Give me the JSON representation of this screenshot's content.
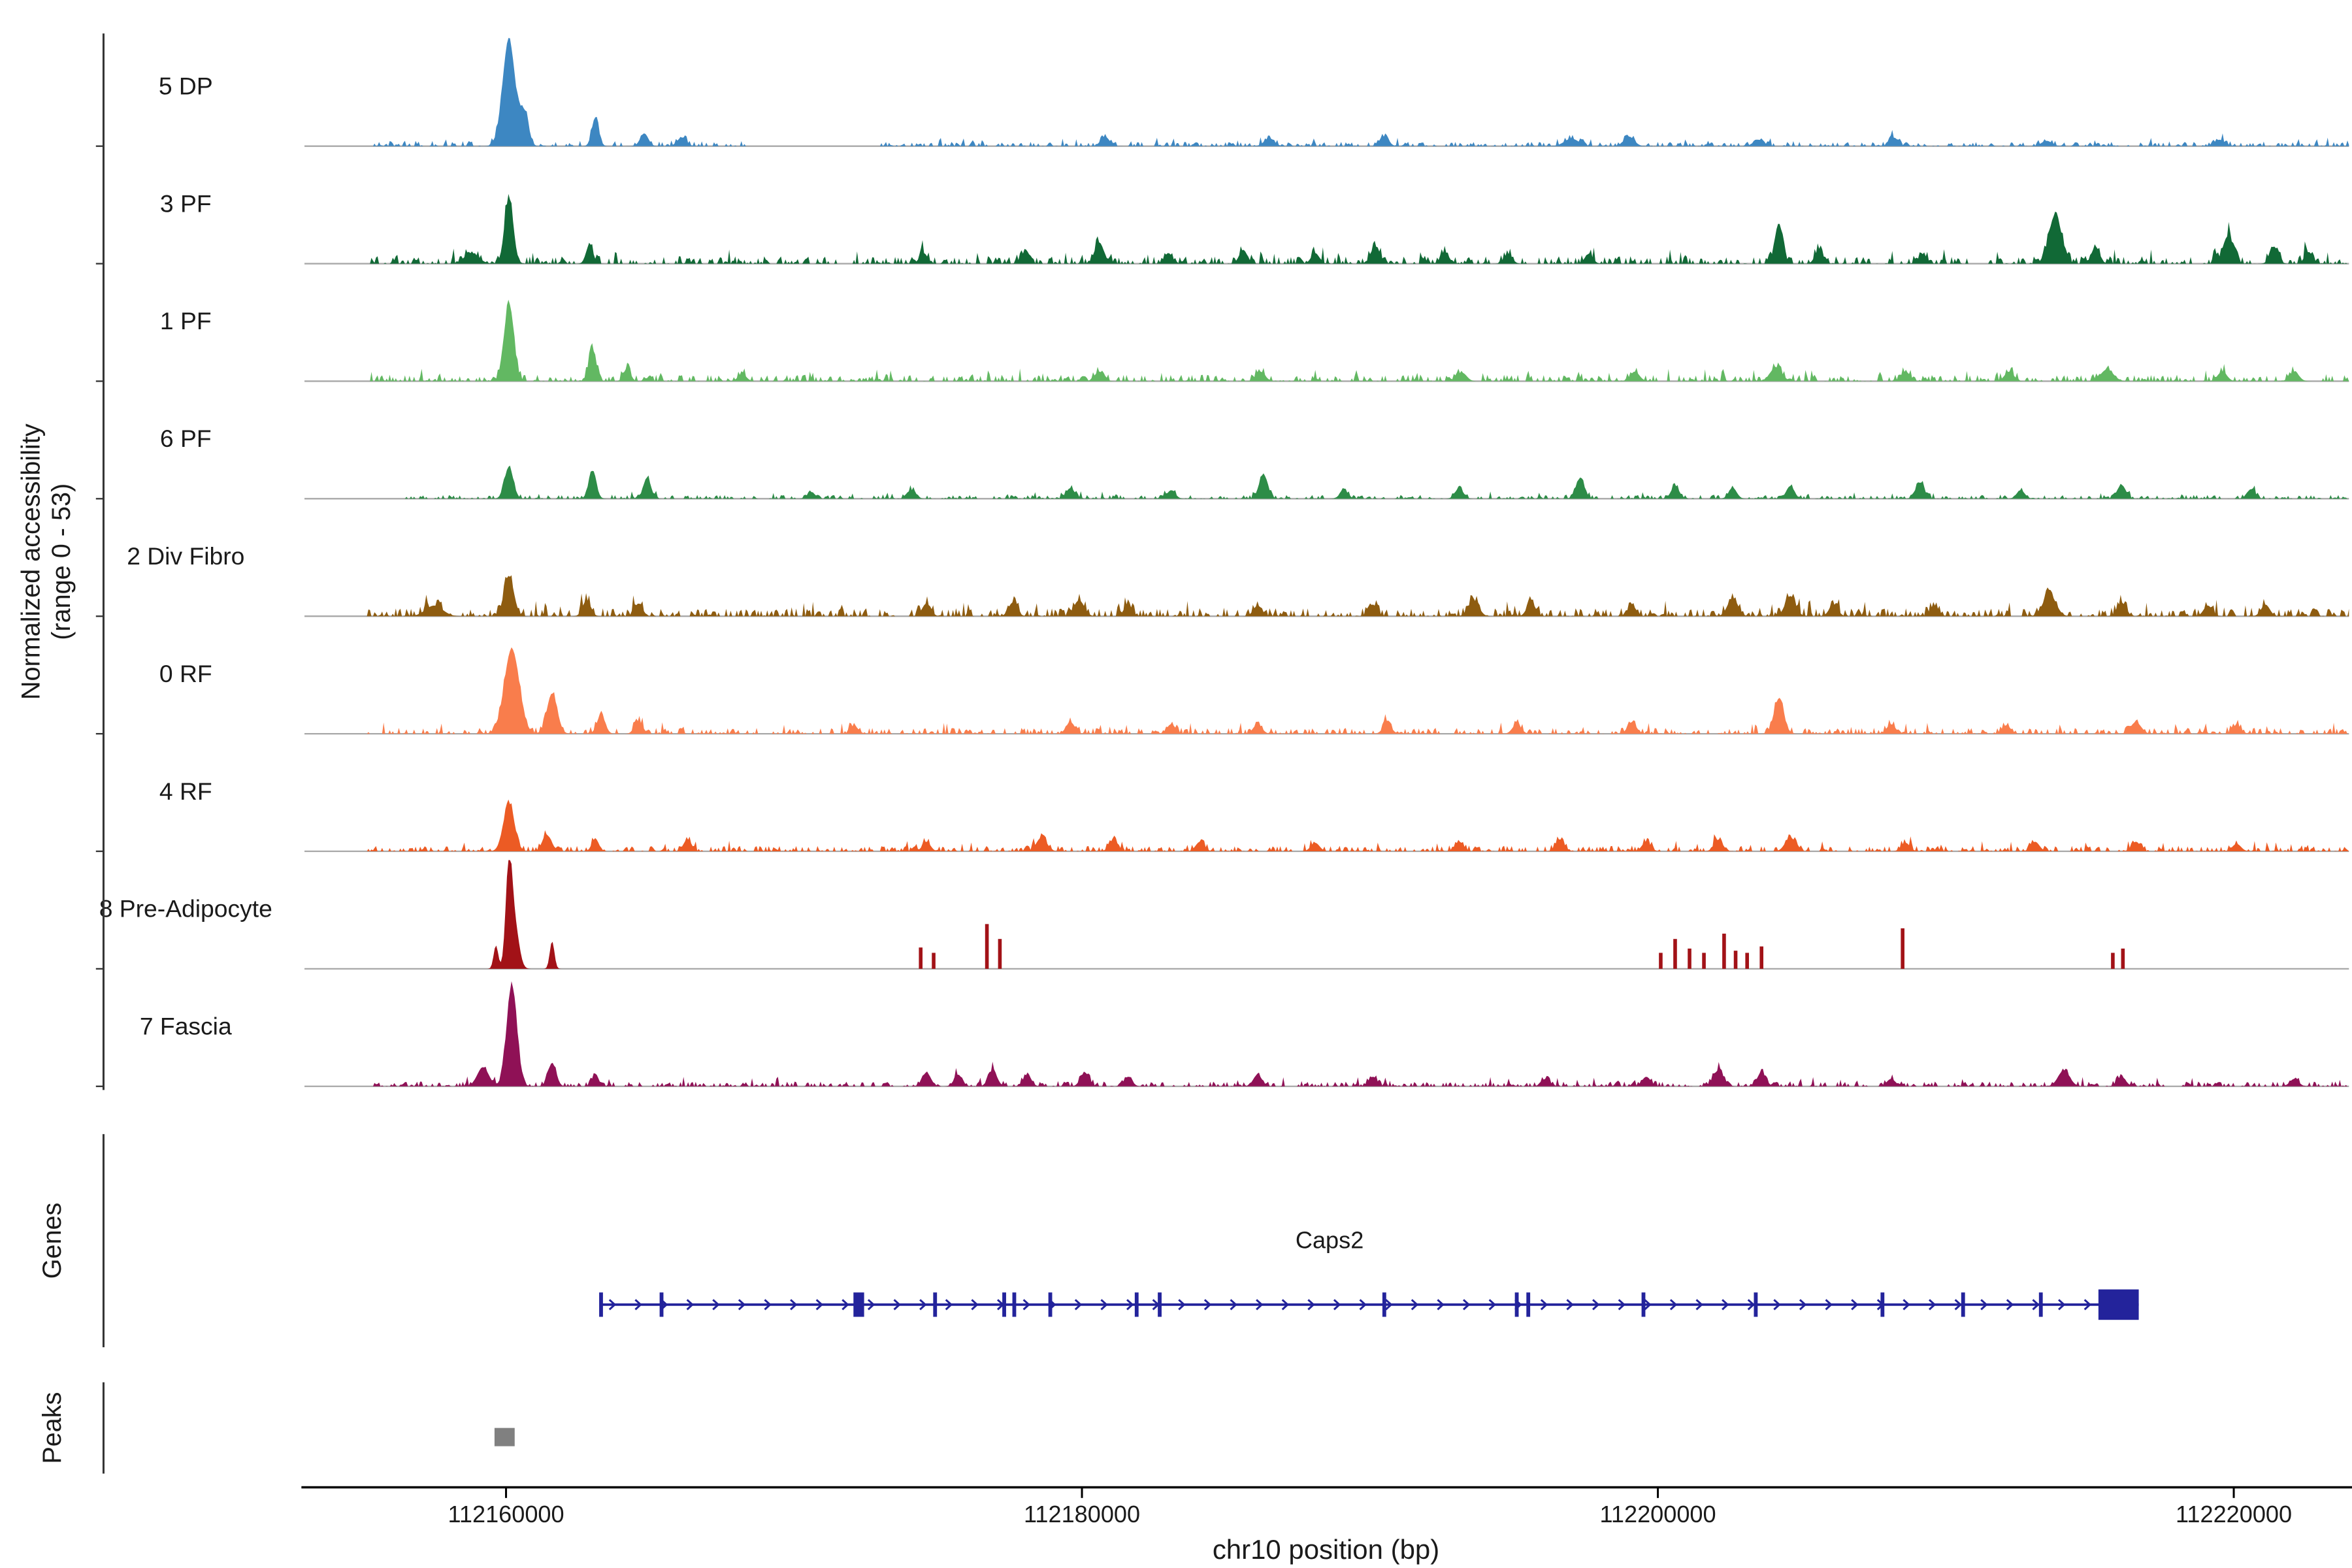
{
  "figure": {
    "y_axis_label_line1": "Normalized accessibility",
    "y_axis_label_line2": "(range 0 - 53)",
    "genes_section_label": "Genes",
    "peaks_section_label": "Peaks",
    "x_axis_label": "chr10 position (bp)"
  },
  "chart_data": {
    "type": "area",
    "subtype": "genome-coverage-tracks",
    "title": "",
    "x_label": "chr10 position (bp)",
    "y_range_label": "range 0 - 53",
    "x_min": 112153000,
    "x_max": 112224000,
    "x_ticks": [
      112160000,
      112180000,
      112200000,
      112220000
    ],
    "grid": false,
    "tracks": [
      {
        "name": "5 DP",
        "color": "#3d87c2",
        "seed": 11,
        "bumps": [
          [
            112160100,
            1.0,
            220
          ],
          [
            112160650,
            0.3,
            140
          ],
          [
            112163100,
            0.27,
            120
          ],
          [
            112164800,
            0.12,
            140
          ],
          [
            112166100,
            0.08,
            160
          ],
          [
            112180800,
            0.09,
            150
          ],
          [
            112186500,
            0.07,
            180
          ],
          [
            112190500,
            0.09,
            150
          ],
          [
            112197000,
            0.07,
            250
          ],
          [
            112199000,
            0.09,
            180
          ],
          [
            112203500,
            0.06,
            180
          ],
          [
            112208200,
            0.08,
            150
          ],
          [
            112213500,
            0.05,
            180
          ],
          [
            112219500,
            0.06,
            180
          ]
        ],
        "spikes": [],
        "noise": [
          [
            112155200,
            112168500,
            0.05
          ],
          [
            112173000,
            112224000,
            0.04
          ]
        ]
      },
      {
        "name": "3 PF",
        "color": "#116936",
        "seed": 22,
        "bumps": [
          [
            112160100,
            0.62,
            150
          ],
          [
            112162900,
            0.18,
            120
          ],
          [
            112158800,
            0.1,
            250
          ],
          [
            112174500,
            0.1,
            140
          ],
          [
            112178000,
            0.1,
            140
          ],
          [
            112180600,
            0.2,
            160
          ],
          [
            112183000,
            0.1,
            140
          ],
          [
            112185600,
            0.13,
            140
          ],
          [
            112188100,
            0.1,
            140
          ],
          [
            112190200,
            0.16,
            150
          ],
          [
            112192600,
            0.11,
            140
          ],
          [
            112194800,
            0.09,
            140
          ],
          [
            112197600,
            0.09,
            140
          ],
          [
            112204200,
            0.38,
            140
          ],
          [
            112205600,
            0.13,
            140
          ],
          [
            112209200,
            0.09,
            140
          ],
          [
            112213800,
            0.46,
            220
          ],
          [
            112215200,
            0.16,
            140
          ],
          [
            112219800,
            0.26,
            180
          ],
          [
            112221400,
            0.16,
            140
          ],
          [
            112222600,
            0.11,
            140
          ]
        ],
        "spikes": [],
        "noise": [
          [
            112155200,
            112224000,
            0.07
          ]
        ]
      },
      {
        "name": "1 PF",
        "color": "#62b862",
        "seed": 33,
        "bumps": [
          [
            112160100,
            0.72,
            170
          ],
          [
            112163000,
            0.3,
            130
          ],
          [
            112164200,
            0.12,
            120
          ],
          [
            112168200,
            0.07,
            140
          ],
          [
            112180600,
            0.09,
            160
          ],
          [
            112186200,
            0.09,
            160
          ],
          [
            112193200,
            0.08,
            160
          ],
          [
            112199200,
            0.09,
            160
          ],
          [
            112204100,
            0.13,
            200
          ],
          [
            112208600,
            0.09,
            160
          ],
          [
            112212200,
            0.09,
            160
          ],
          [
            112215600,
            0.11,
            220
          ],
          [
            112219600,
            0.09,
            160
          ],
          [
            112222100,
            0.09,
            160
          ]
        ],
        "spikes": [],
        "noise": [
          [
            112155200,
            112224000,
            0.06
          ]
        ]
      },
      {
        "name": "6 PF",
        "color": "#2d8c47",
        "seed": 44,
        "bumps": [
          [
            112160100,
            0.3,
            150
          ],
          [
            112163000,
            0.26,
            130
          ],
          [
            112164900,
            0.2,
            130
          ],
          [
            112170600,
            0.06,
            140
          ],
          [
            112174100,
            0.08,
            140
          ],
          [
            112179600,
            0.1,
            150
          ],
          [
            112183100,
            0.08,
            140
          ],
          [
            112186300,
            0.23,
            150
          ],
          [
            112189100,
            0.08,
            140
          ],
          [
            112193100,
            0.1,
            140
          ],
          [
            112197300,
            0.19,
            150
          ],
          [
            112200600,
            0.12,
            140
          ],
          [
            112202600,
            0.1,
            140
          ],
          [
            112204600,
            0.12,
            140
          ],
          [
            112209100,
            0.15,
            150
          ],
          [
            112212600,
            0.08,
            140
          ],
          [
            112216100,
            0.13,
            150
          ],
          [
            112220600,
            0.09,
            140
          ]
        ],
        "spikes": [],
        "noise": [
          [
            112156500,
            112224000,
            0.035
          ]
        ]
      },
      {
        "name": "2 Div Fibro",
        "color": "#8e5c10",
        "seed": 55,
        "bumps": [
          [
            112160100,
            0.38,
            170
          ],
          [
            112162800,
            0.15,
            140
          ],
          [
            112164600,
            0.12,
            140
          ],
          [
            112157500,
            0.1,
            300
          ],
          [
            112174600,
            0.12,
            150
          ],
          [
            112177600,
            0.13,
            150
          ],
          [
            112179900,
            0.15,
            180
          ],
          [
            112181600,
            0.11,
            140
          ],
          [
            112186100,
            0.1,
            150
          ],
          [
            112190100,
            0.11,
            150
          ],
          [
            112193600,
            0.15,
            180
          ],
          [
            112195600,
            0.13,
            150
          ],
          [
            112199100,
            0.1,
            150
          ],
          [
            112202600,
            0.17,
            180
          ],
          [
            112204600,
            0.19,
            180
          ],
          [
            112206100,
            0.11,
            150
          ],
          [
            112209600,
            0.1,
            150
          ],
          [
            112213600,
            0.21,
            220
          ],
          [
            112216100,
            0.13,
            150
          ],
          [
            112219100,
            0.1,
            150
          ],
          [
            112221100,
            0.11,
            150
          ]
        ],
        "spikes": [],
        "noise": [
          [
            112155200,
            112224000,
            0.075
          ]
        ]
      },
      {
        "name": "0 RF",
        "color": "#f97d4c",
        "seed": 66,
        "bumps": [
          [
            112160200,
            0.8,
            260
          ],
          [
            112161600,
            0.38,
            180
          ],
          [
            112163300,
            0.18,
            140
          ],
          [
            112164600,
            0.12,
            140
          ],
          [
            112172100,
            0.07,
            140
          ],
          [
            112179600,
            0.11,
            150
          ],
          [
            112183100,
            0.09,
            150
          ],
          [
            112186100,
            0.09,
            150
          ],
          [
            112190600,
            0.09,
            150
          ],
          [
            112195100,
            0.09,
            150
          ],
          [
            112199100,
            0.11,
            150
          ],
          [
            112204200,
            0.33,
            170
          ],
          [
            112208100,
            0.09,
            150
          ],
          [
            112212100,
            0.08,
            150
          ],
          [
            112216600,
            0.11,
            180
          ],
          [
            112220100,
            0.08,
            150
          ]
        ],
        "spikes": [],
        "noise": [
          [
            112155200,
            112224000,
            0.055
          ]
        ]
      },
      {
        "name": "4 RF",
        "color": "#ec5b24",
        "seed": 77,
        "bumps": [
          [
            112160100,
            0.45,
            190
          ],
          [
            112161400,
            0.16,
            140
          ],
          [
            112163100,
            0.12,
            120
          ],
          [
            112166300,
            0.11,
            140
          ],
          [
            112174600,
            0.09,
            140
          ],
          [
            112178600,
            0.13,
            180
          ],
          [
            112181100,
            0.11,
            150
          ],
          [
            112184100,
            0.09,
            150
          ],
          [
            112188100,
            0.08,
            150
          ],
          [
            112193100,
            0.09,
            150
          ],
          [
            112196600,
            0.11,
            150
          ],
          [
            112199600,
            0.09,
            150
          ],
          [
            112202100,
            0.11,
            150
          ],
          [
            112204600,
            0.13,
            180
          ],
          [
            112208600,
            0.08,
            150
          ],
          [
            112213100,
            0.09,
            150
          ],
          [
            112216600,
            0.09,
            150
          ],
          [
            112220100,
            0.07,
            150
          ]
        ],
        "spikes": [],
        "noise": [
          [
            112155200,
            112224000,
            0.05
          ]
        ]
      },
      {
        "name": "8 Pre-Adipocyte",
        "color": "#a21217",
        "seed": 88,
        "bumps": [
          [
            112160100,
            0.95,
            110
          ],
          [
            112160300,
            0.4,
            150
          ],
          [
            112159650,
            0.22,
            80
          ],
          [
            112161600,
            0.26,
            80
          ]
        ],
        "spikes": [
          [
            112174400,
            0.2
          ],
          [
            112174850,
            0.15
          ],
          [
            112176700,
            0.42
          ],
          [
            112177150,
            0.28
          ],
          [
            112200100,
            0.15
          ],
          [
            112200600,
            0.28
          ],
          [
            112201100,
            0.19
          ],
          [
            112201600,
            0.15
          ],
          [
            112202300,
            0.33
          ],
          [
            112202700,
            0.17
          ],
          [
            112203100,
            0.15
          ],
          [
            112203600,
            0.21
          ],
          [
            112208500,
            0.38
          ],
          [
            112215800,
            0.15
          ],
          [
            112216150,
            0.19
          ]
        ],
        "noise": []
      },
      {
        "name": "7 Fascia",
        "color": "#8f1156",
        "seed": 99,
        "bumps": [
          [
            112160200,
            0.95,
            180
          ],
          [
            112159200,
            0.18,
            200
          ],
          [
            112161600,
            0.22,
            140
          ],
          [
            112163100,
            0.12,
            110
          ],
          [
            112174600,
            0.13,
            150
          ],
          [
            112175700,
            0.11,
            140
          ],
          [
            112176900,
            0.15,
            150
          ],
          [
            112178100,
            0.11,
            140
          ],
          [
            112180100,
            0.13,
            150
          ],
          [
            112181600,
            0.09,
            140
          ],
          [
            112186100,
            0.11,
            150
          ],
          [
            112190100,
            0.09,
            150
          ],
          [
            112196100,
            0.07,
            150
          ],
          [
            112199600,
            0.09,
            150
          ],
          [
            112202100,
            0.15,
            180
          ],
          [
            112203600,
            0.13,
            150
          ],
          [
            112208100,
            0.07,
            150
          ],
          [
            112214100,
            0.15,
            200
          ],
          [
            112216100,
            0.09,
            150
          ],
          [
            112222100,
            0.07,
            150
          ]
        ],
        "spikes": [],
        "noise": [
          [
            112155200,
            112224000,
            0.045
          ]
        ]
      }
    ],
    "gene_track": {
      "name": "Caps2",
      "color": "#23239b",
      "strand": "+",
      "start": 112163300,
      "end": 112216700,
      "label_bp": 112188600,
      "exons": [
        [
          112163300,
          2.5
        ],
        [
          112165400,
          2.5
        ],
        [
          112172250,
          7
        ],
        [
          112174900,
          2.5
        ],
        [
          112177300,
          2.5
        ],
        [
          112177650,
          2.5
        ],
        [
          112178900,
          2.5
        ],
        [
          112181900,
          2.5
        ],
        [
          112182700,
          2.5
        ],
        [
          112190500,
          2.5
        ],
        [
          112195100,
          2.5
        ],
        [
          112195500,
          2.5
        ],
        [
          112199500,
          2.5
        ],
        [
          112203400,
          2.5
        ],
        [
          112207800,
          2.5
        ],
        [
          112210600,
          2.5
        ],
        [
          112213300,
          2.5
        ]
      ],
      "utr_box": [
        112215300,
        112216700
      ]
    },
    "peak_track": {
      "color": "#808080",
      "regions": [
        [
          112159600,
          112160300
        ]
      ]
    },
    "layout": {
      "plot_left": 200,
      "plot_right": 1543,
      "track_base0": 96,
      "track_step": 77.2,
      "signal_height": 70,
      "bracket_x": 68,
      "tracks_top": 22,
      "tracks_bottom": 716,
      "genes_top": 745,
      "genes_bottom": 885,
      "gene_line_y": 857,
      "gene_label_y": 820,
      "peaks_top": 908,
      "peaks_bottom": 968,
      "peak_rect_y": 938,
      "peak_rect_h": 12,
      "x_axis_y": 977,
      "tick_len": 7,
      "tick_label_y": 1000,
      "x_label_y": 1024,
      "x_label_x": 871
    }
  }
}
